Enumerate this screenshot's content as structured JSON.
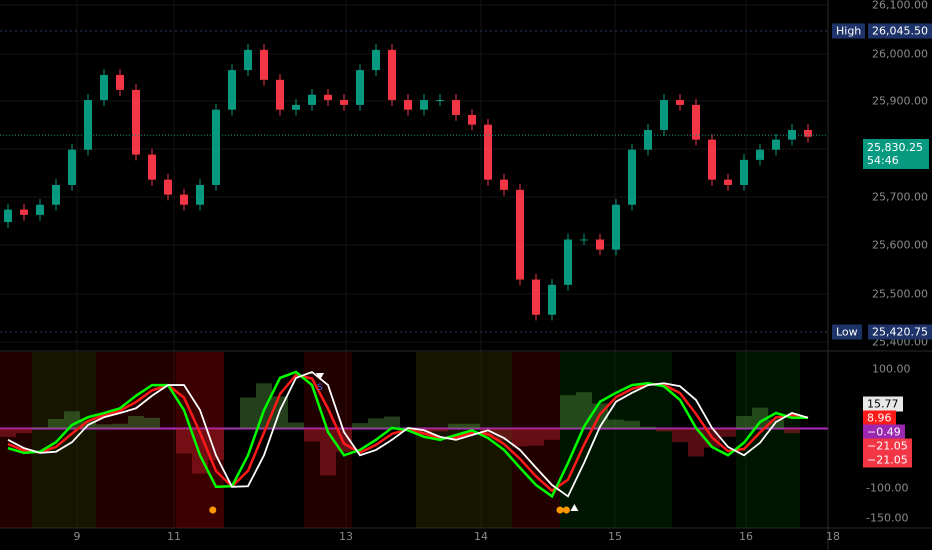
{
  "chart_data": [
    {
      "type": "candlestick",
      "yaxis_ticks": [
        "26,100.00",
        "26,000.00",
        "25,900.00",
        "25,700.00",
        "25,600.00",
        "25,500.00",
        "25,400.00"
      ],
      "ylim": [
        25390,
        26110
      ],
      "first_open": 25650,
      "closes": [
        25676,
        25665,
        25686,
        25727,
        25800,
        25903,
        25955,
        25924,
        25790,
        25738,
        25707,
        25686,
        25727,
        25883,
        25965,
        26007,
        25945,
        25883,
        25893,
        25914,
        25903,
        25893,
        25965,
        26007,
        25903,
        25883,
        25903,
        25903,
        25872,
        25852,
        25738,
        25717,
        25531,
        25458,
        25520,
        25614,
        25614,
        25593,
        25686,
        25800,
        25841,
        25903,
        25893,
        25821,
        25738,
        25727,
        25779,
        25800,
        25821,
        25841,
        25827
      ],
      "high": {
        "label": "High",
        "value": "26,045.50"
      },
      "low": {
        "label": "Low",
        "value": "25,420.75"
      },
      "last": {
        "value": "25,830.25",
        "countdown": "54:46"
      },
      "colors": {
        "up": "#089981",
        "down": "#f23645"
      }
    },
    {
      "type": "line",
      "yaxis_ticks": [
        "100.00",
        "-100.00",
        "-150.00"
      ],
      "ylim": [
        -165,
        125
      ],
      "series": [
        {
          "color": "#ffffff",
          "values": [
            -19,
            -33,
            -41,
            -39,
            -23,
            6,
            19,
            26,
            34,
            55,
            73,
            73,
            31,
            -45,
            -98,
            -97,
            -45,
            31,
            85,
            95,
            73,
            -6,
            -45,
            -36,
            -19,
            1,
            -3,
            -14,
            -19,
            -11,
            -3,
            -16,
            -36,
            -66,
            -95,
            -114,
            -58,
            3,
            45,
            60,
            73,
            76,
            71,
            48,
            1,
            -31,
            -45,
            -24,
            11,
            26,
            18
          ]
        },
        {
          "color": "#00ff00",
          "values": [
            -33,
            -41,
            -39,
            -23,
            6,
            19,
            26,
            34,
            55,
            73,
            73,
            31,
            -45,
            -98,
            -97,
            -45,
            31,
            85,
            95,
            73,
            -6,
            -45,
            -36,
            -19,
            1,
            -3,
            -14,
            -19,
            -11,
            -3,
            -16,
            -36,
            -66,
            -95,
            -114,
            -58,
            3,
            45,
            60,
            73,
            76,
            71,
            48,
            1,
            -31,
            -45,
            -24,
            11,
            26,
            18,
            18
          ]
        }
      ],
      "histogram": [
        -14,
        -8,
        2,
        16,
        29,
        13,
        7,
        8,
        21,
        18,
        0,
        -42,
        -76,
        -53,
        1,
        52,
        76,
        54,
        10,
        -22,
        -79,
        -39,
        9,
        17,
        20,
        -4,
        -11,
        -5,
        8,
        8,
        -13,
        -20,
        -30,
        -29,
        -19,
        56,
        61,
        42,
        15,
        13,
        3,
        -5,
        -23,
        -47,
        -32,
        -14,
        21,
        35,
        15,
        -8,
        0
      ],
      "zones": [
        [
          0,
          2,
          "bear"
        ],
        [
          2,
          6,
          "neutral"
        ],
        [
          6,
          11,
          "bear"
        ],
        [
          11,
          14,
          "strong-bear"
        ],
        [
          19,
          22,
          "bear"
        ],
        [
          26,
          32,
          "neutral"
        ],
        [
          32,
          35,
          "bear"
        ],
        [
          35,
          42,
          "bull"
        ],
        [
          46,
          50,
          "bull"
        ]
      ],
      "signals": [
        {
          "index": 12.8,
          "type": "dot"
        },
        {
          "index": 34.5,
          "type": "dot"
        },
        {
          "index": 34.9,
          "type": "dot"
        },
        {
          "index": 19.5,
          "type": "sell",
          "label": "S"
        },
        {
          "index": 35.4,
          "type": "buy"
        }
      ],
      "value_labels": [
        {
          "value": "15.77",
          "bg": "#e8e8e8",
          "fg": "#000"
        },
        {
          "value": "8.96",
          "bg": "#ff1a1a",
          "fg": "#fff"
        },
        {
          "value": "−0.49",
          "bg": "#9c27b0",
          "fg": "#fff"
        },
        {
          "value": "−21.05",
          "bg": "#f23645",
          "fg": "#fff"
        },
        {
          "value": "−21.05",
          "bg": "#f23645",
          "fg": "#fff"
        }
      ]
    }
  ],
  "xaxis": [
    "9",
    "11",
    "13",
    "14",
    "15",
    "16",
    "18"
  ]
}
